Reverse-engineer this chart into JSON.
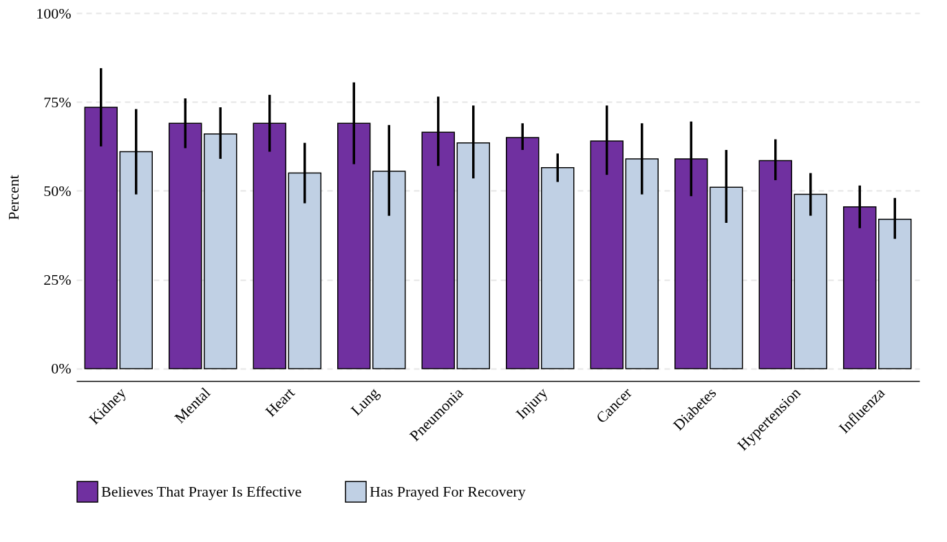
{
  "chart_data": {
    "type": "bar",
    "ylabel": "Percent",
    "categories": [
      "Kidney",
      "Mental",
      "Heart",
      "Lung",
      "Pneumonia",
      "Injury",
      "Cancer",
      "Diabetes",
      "Hypertension",
      "Influenza"
    ],
    "series": [
      {
        "name": "Believes That Prayer Is Effective",
        "color": "#7030a0",
        "values": [
          73.5,
          69,
          69,
          69,
          66.5,
          65,
          64,
          59,
          58.5,
          45.5
        ],
        "errors": [
          [
            62.5,
            84.5
          ],
          [
            62,
            76
          ],
          [
            61,
            77
          ],
          [
            57.5,
            80.5
          ],
          [
            57,
            76.5
          ],
          [
            61.5,
            69
          ],
          [
            54.5,
            74
          ],
          [
            48.5,
            69.5
          ],
          [
            53,
            64.5
          ],
          [
            39.5,
            51.5
          ]
        ]
      },
      {
        "name": "Has Prayed For Recovery",
        "color": "#c0d0e4",
        "values": [
          61,
          66,
          55,
          55.5,
          63.5,
          56.5,
          59,
          51,
          49,
          42
        ],
        "errors": [
          [
            49,
            73
          ],
          [
            59,
            73.5
          ],
          [
            46.5,
            63.5
          ],
          [
            43,
            68.5
          ],
          [
            53.5,
            74
          ],
          [
            52.5,
            60.5
          ],
          [
            49,
            69
          ],
          [
            41,
            61.5
          ],
          [
            43,
            55
          ],
          [
            36.5,
            48
          ]
        ]
      }
    ],
    "ylim": [
      -3.5,
      100
    ],
    "yticks": [
      {
        "value": 0,
        "label": "0%"
      },
      {
        "value": 25,
        "label": "25%"
      },
      {
        "value": 50,
        "label": "50%"
      },
      {
        "value": 75,
        "label": "75%"
      },
      {
        "value": 100,
        "label": "100%"
      }
    ],
    "grid": "y",
    "legend": "bottom"
  }
}
